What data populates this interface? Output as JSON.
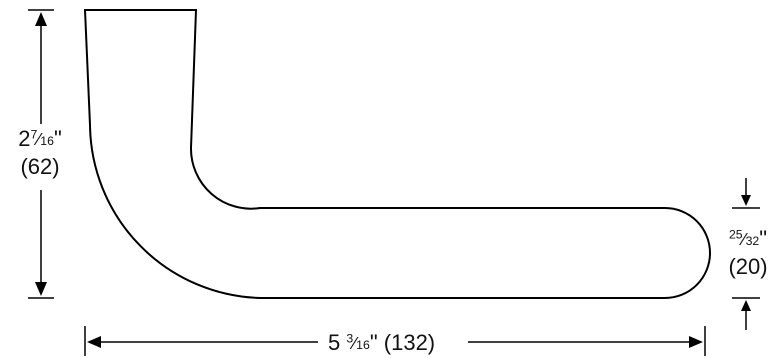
{
  "dimensions": {
    "height": {
      "whole": "2",
      "numerator": "7",
      "denominator": "16",
      "unit": "\"",
      "metric": "(62)"
    },
    "thickness": {
      "numerator": "25",
      "denominator": "32",
      "unit": "\"",
      "metric": "(20)"
    },
    "width": {
      "whole": "5",
      "numerator": "3",
      "denominator": "16",
      "unit": "\"",
      "metric": "(132)"
    }
  },
  "colors": {
    "line": "#000000",
    "background": "#ffffff"
  }
}
